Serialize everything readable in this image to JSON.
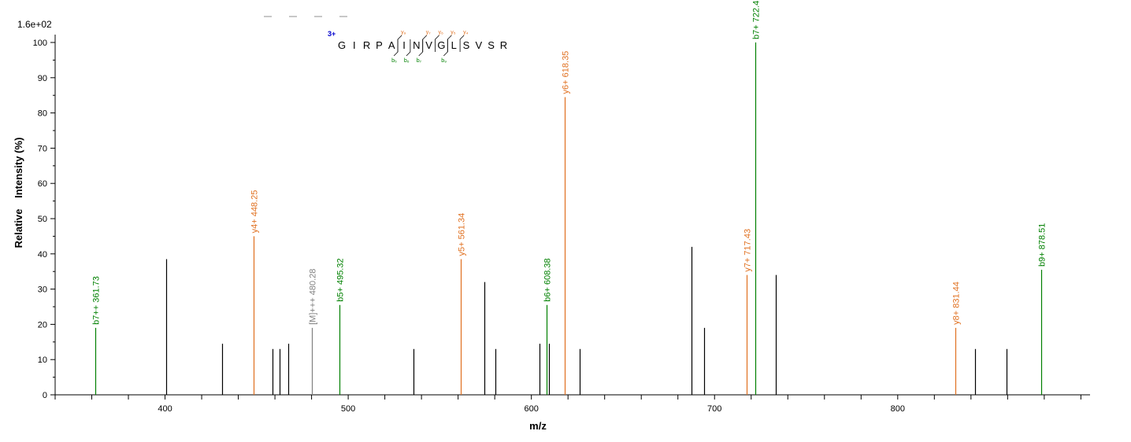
{
  "chart_data": {
    "type": "bar",
    "y_scale_max": "1.6e+02",
    "xlabel": "m/z",
    "ylabel_word1": "Relative",
    "ylabel_word2": "Intensity (%)",
    "xlim": [
      340,
      905
    ],
    "ylim": [
      0,
      101
    ],
    "x_ticks": [
      400,
      500,
      600,
      700,
      800
    ],
    "y_ticks": [
      0,
      10,
      20,
      30,
      40,
      50,
      60,
      70,
      80,
      90,
      100
    ],
    "colors": {
      "b": "#008000",
      "y": "#e07020",
      "precursor": "#808080",
      "other": "#000000"
    },
    "peptide": {
      "charge": "3+",
      "sequence": [
        "G",
        "I",
        "R",
        "P",
        "A",
        "I",
        "N",
        "V",
        "G",
        "L",
        "S",
        "V",
        "S",
        "R"
      ],
      "y_labels": [
        {
          "text": "y₉",
          "after": 5
        },
        {
          "text": "y₇",
          "after": 7
        },
        {
          "text": "y₆",
          "after": 8
        },
        {
          "text": "y₅",
          "after": 9
        },
        {
          "text": "y₄",
          "after": 10
        }
      ],
      "b_labels": [
        {
          "text": "b₅",
          "after": 5
        },
        {
          "text": "b₆",
          "after": 6
        },
        {
          "text": "b₇",
          "after": 7
        },
        {
          "text": "b₉",
          "after": 9
        }
      ]
    },
    "peaks": [
      {
        "mz": 361.73,
        "intensity": 19,
        "type": "b",
        "label": "b7++ 361.73"
      },
      {
        "mz": 400.5,
        "intensity": 38.5,
        "type": "other"
      },
      {
        "mz": 431.3,
        "intensity": 14.5,
        "type": "other"
      },
      {
        "mz": 448.25,
        "intensity": 45,
        "type": "y",
        "label": "y4+ 448.25"
      },
      {
        "mz": 458.5,
        "intensity": 13,
        "type": "other"
      },
      {
        "mz": 462.5,
        "intensity": 13,
        "type": "other"
      },
      {
        "mz": 467.2,
        "intensity": 14.5,
        "type": "other"
      },
      {
        "mz": 480.28,
        "intensity": 19,
        "type": "precursor",
        "label": "[M]+++ 480.28"
      },
      {
        "mz": 495.32,
        "intensity": 25.5,
        "type": "b",
        "label": "b5+ 495.32"
      },
      {
        "mz": 535.5,
        "intensity": 13,
        "type": "other"
      },
      {
        "mz": 561.34,
        "intensity": 38.5,
        "type": "y",
        "label": "y5+ 561.34"
      },
      {
        "mz": 574.5,
        "intensity": 32,
        "type": "other"
      },
      {
        "mz": 580.3,
        "intensity": 13,
        "type": "other"
      },
      {
        "mz": 604.5,
        "intensity": 14.5,
        "type": "other"
      },
      {
        "mz": 608.38,
        "intensity": 25.5,
        "type": "b",
        "label": "b6+ 608.38"
      },
      {
        "mz": 609.5,
        "intensity": 14.5,
        "type": "other"
      },
      {
        "mz": 618.35,
        "intensity": 84.5,
        "type": "y",
        "label": "y6+ 618.35"
      },
      {
        "mz": 626.3,
        "intensity": 13,
        "type": "other"
      },
      {
        "mz": 687.3,
        "intensity": 42,
        "type": "other"
      },
      {
        "mz": 694.3,
        "intensity": 19,
        "type": "other"
      },
      {
        "mz": 717.43,
        "intensity": 34,
        "type": "y",
        "label": "y7+ 717.43"
      },
      {
        "mz": 722.42,
        "intensity": 100,
        "type": "b",
        "label": "b7+ 722.42"
      },
      {
        "mz": 733.5,
        "intensity": 34,
        "type": "other"
      },
      {
        "mz": 831.44,
        "intensity": 19,
        "type": "y",
        "label": "y8+ 831.44"
      },
      {
        "mz": 842.3,
        "intensity": 13,
        "type": "other"
      },
      {
        "mz": 859.3,
        "intensity": 13,
        "type": "other"
      },
      {
        "mz": 878.51,
        "intensity": 35.5,
        "type": "b",
        "label": "b9+ 878.51"
      }
    ]
  }
}
